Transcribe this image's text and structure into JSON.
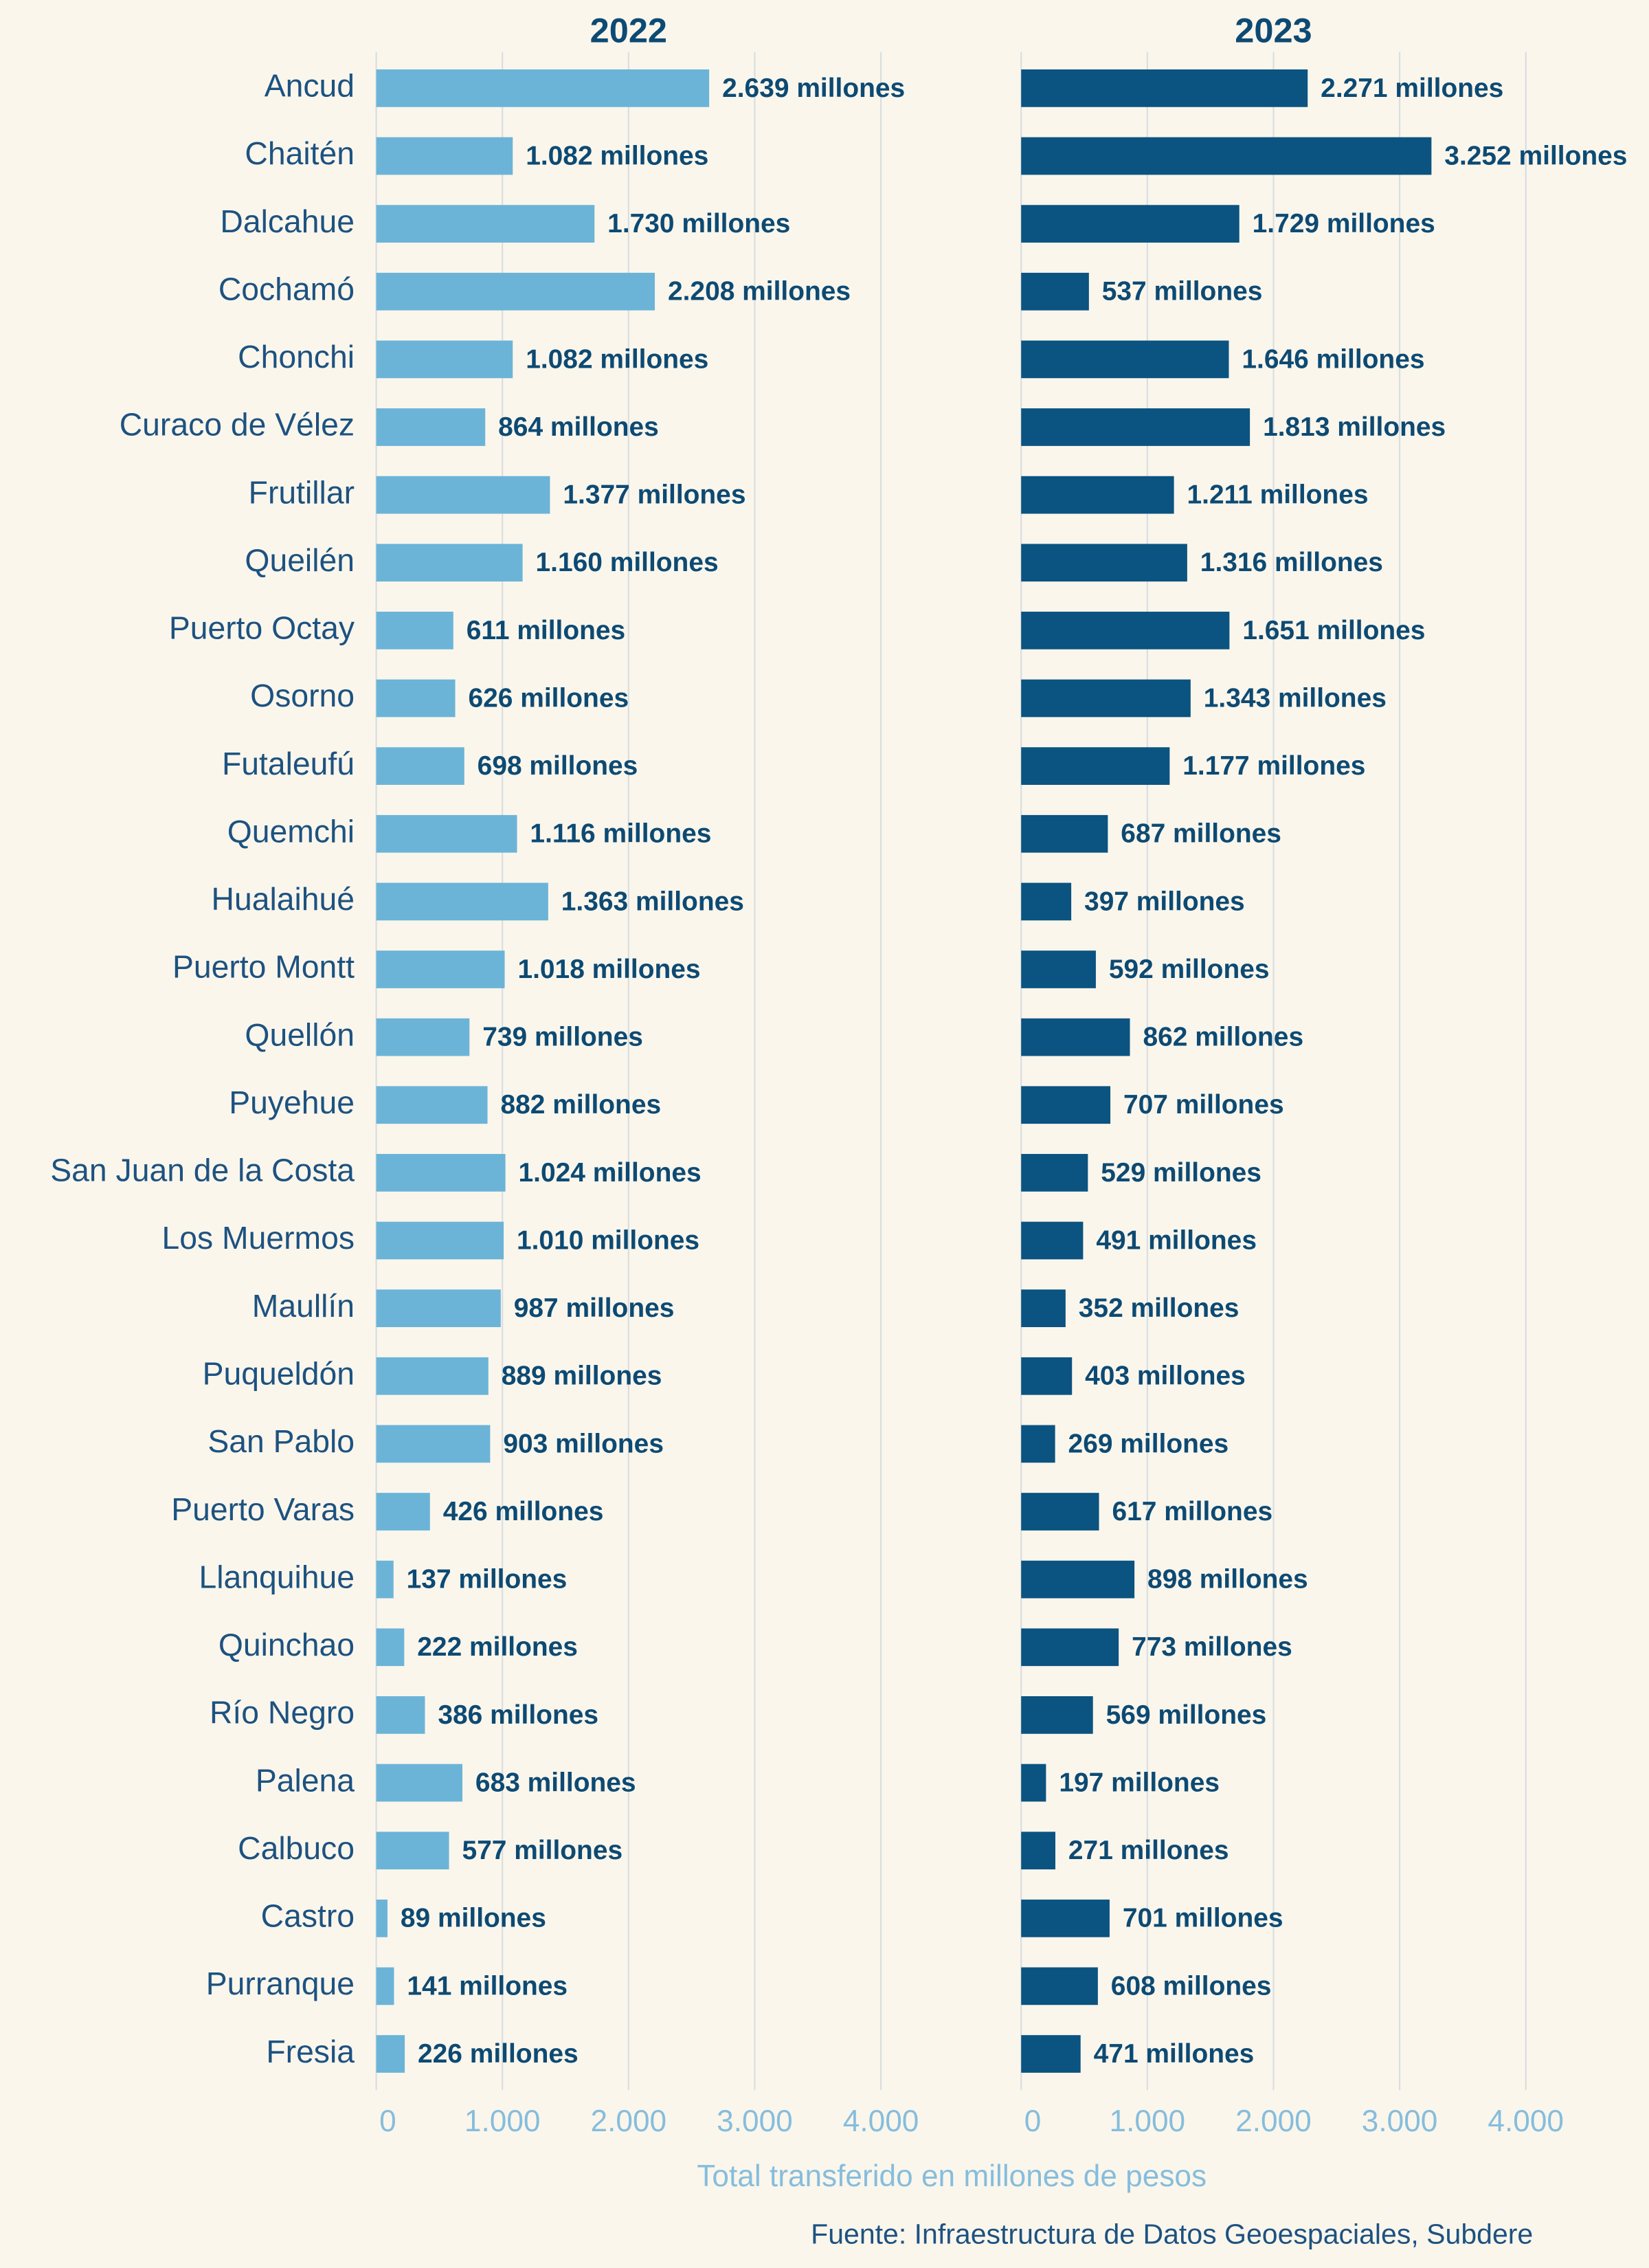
{
  "chart_data": [
    {
      "type": "bar",
      "orientation": "horizontal",
      "title": "2022",
      "color": "#6bb4d7",
      "categories": [
        "Ancud",
        "Chaitén",
        "Dalcahue",
        "Cochamó",
        "Chonchi",
        "Curaco de Vélez",
        "Frutillar",
        "Queilén",
        "Puerto Octay",
        "Osorno",
        "Futaleufú",
        "Quemchi",
        "Hualaihué",
        "Puerto Montt",
        "Quellón",
        "Puyehue",
        "San Juan de la Costa",
        "Los Muermos",
        "Maullín",
        "Puqueldón",
        "San Pablo",
        "Puerto Varas",
        "Llanquihue",
        "Quinchao",
        "Río Negro",
        "Palena",
        "Calbuco",
        "Castro",
        "Purranque",
        "Fresia"
      ],
      "values": [
        2639,
        1082,
        1730,
        2208,
        1082,
        864,
        1377,
        1160,
        611,
        626,
        698,
        1116,
        1363,
        1018,
        739,
        882,
        1024,
        1010,
        987,
        889,
        903,
        426,
        137,
        222,
        386,
        683,
        577,
        89,
        141,
        226
      ],
      "value_labels": [
        "2.639 millones",
        "1.082 millones",
        "1.730 millones",
        "2.208 millones",
        "1.082 millones",
        "864 millones",
        "1.377 millones",
        "1.160 millones",
        "611 millones",
        "626 millones",
        "698 millones",
        "1.116 millones",
        "1.363 millones",
        "1.018 millones",
        "739 millones",
        "882 millones",
        "1.024 millones",
        "1.010 millones",
        "987 millones",
        "889 millones",
        "903 millones",
        "426 millones",
        "137 millones",
        "222 millones",
        "386 millones",
        "683 millones",
        "577 millones",
        "89 millones",
        "141 millones",
        "226 millones"
      ],
      "xlim": [
        0,
        4000
      ],
      "xticks": [
        0,
        {
          "value": 1000,
          "label": "1.000"
        },
        {
          "value": 2000,
          "label": "2.000"
        },
        {
          "value": 3000,
          "label": "3.000"
        },
        {
          "value": 4000,
          "label": "4.000"
        }
      ],
      "grid": true
    },
    {
      "type": "bar",
      "orientation": "horizontal",
      "title": "2023",
      "color": "#0b5380",
      "values": [
        2271,
        3252,
        1729,
        537,
        1646,
        1813,
        1211,
        1316,
        1651,
        1343,
        1177,
        687,
        397,
        592,
        862,
        707,
        529,
        491,
        352,
        403,
        269,
        617,
        898,
        773,
        569,
        197,
        271,
        701,
        608,
        471
      ],
      "value_labels": [
        "2.271 millones",
        "3.252 millones",
        "1.729 millones",
        "537 millones",
        "1.646 millones",
        "1.813 millones",
        "1.211 millones",
        "1.316 millones",
        "1.651 millones",
        "1.343 millones",
        "1.177 millones",
        "687 millones",
        "397 millones",
        "592 millones",
        "862 millones",
        "707 millones",
        "529 millones",
        "491 millones",
        "352 millones",
        "403 millones",
        "269 millones",
        "617 millones",
        "898 millones",
        "773 millones",
        "569 millones",
        "197 millones",
        "271 millones",
        "701 millones",
        "608 millones",
        "471 millones"
      ],
      "xlim": [
        0,
        4000
      ],
      "xticks": [
        0,
        {
          "value": 1000,
          "label": "1.000"
        },
        {
          "value": 2000,
          "label": "2.000"
        },
        {
          "value": 3000,
          "label": "3.000"
        },
        {
          "value": 4000,
          "label": "4.000"
        }
      ],
      "grid": true
    }
  ],
  "x_label": "Total transferido en millones de pesos",
  "source": "Fuente: Infraestructura de Datos Geoespaciales, Subdere"
}
